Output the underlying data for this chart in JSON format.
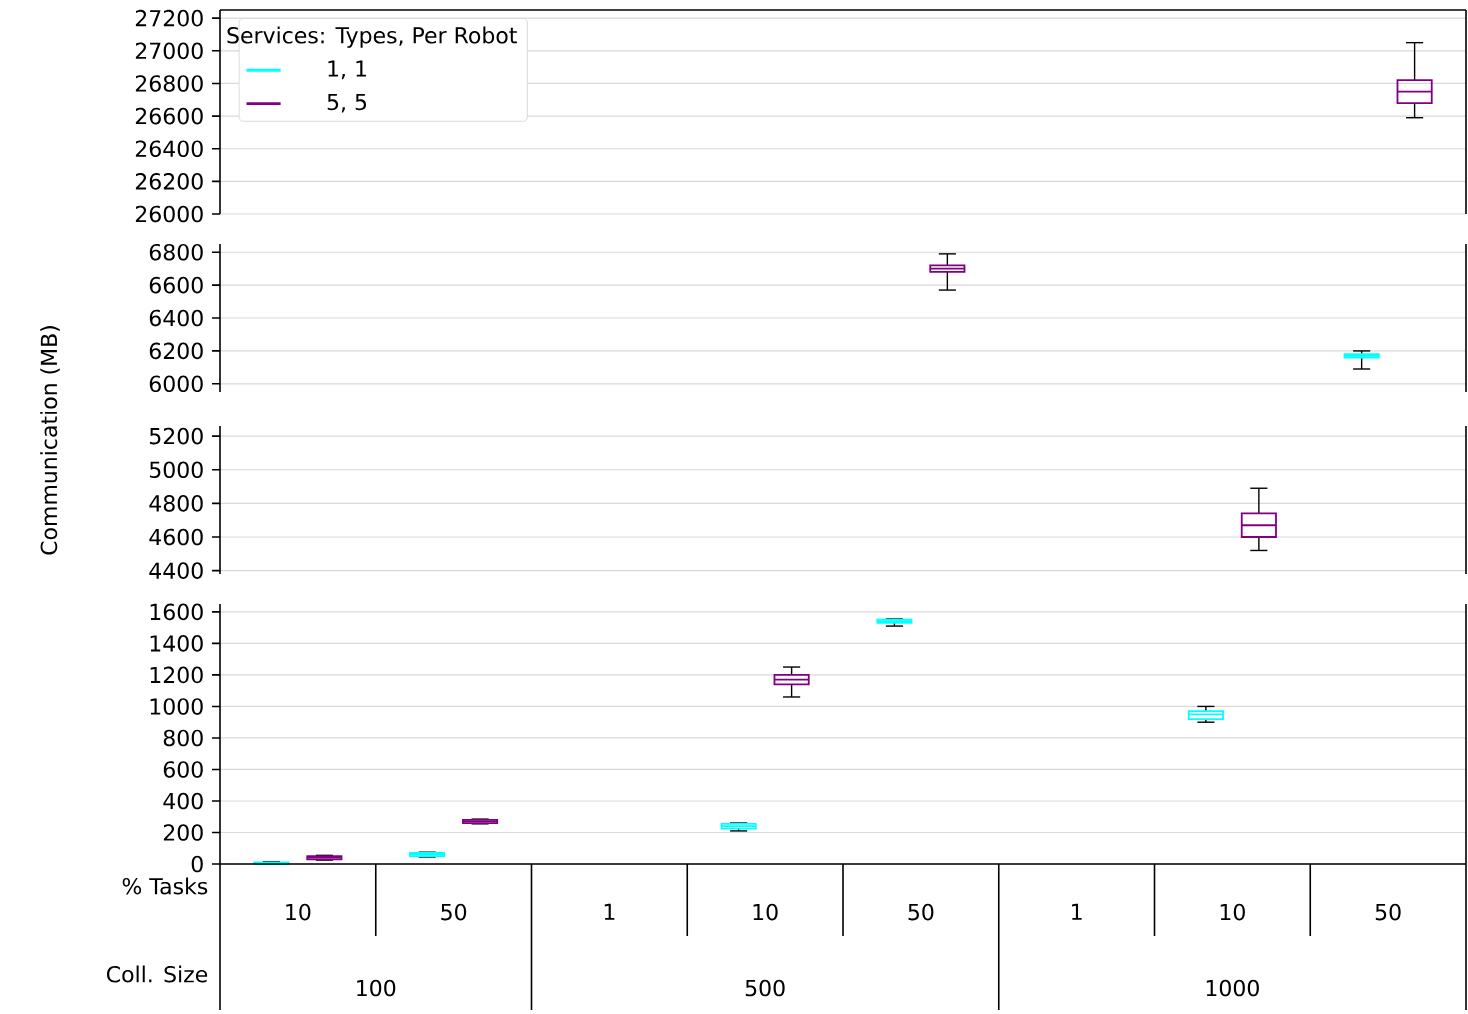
{
  "chart_data": [
    {
      "type": "box",
      "ylabel": "Communication (MB)",
      "legend_title": "Services: Types, Per Robot",
      "legend": "top left",
      "grid": "y",
      "tick_labels": "y",
      "categories": [
        "10",
        "50",
        "1",
        "10",
        "50",
        "1",
        "10",
        "50"
      ],
      "ylim": [
        26000,
        27250
      ],
      "yticks": [
        26000,
        26200,
        26400,
        26600,
        26800,
        27000,
        27200
      ],
      "series": [
        {
          "name": "1, 1",
          "color": "#00ffff",
          "boxes": [
            null,
            null,
            null,
            null,
            null,
            null,
            null,
            null
          ]
        },
        {
          "name": "5, 5",
          "color": "#800080",
          "boxes": [
            null,
            null,
            null,
            null,
            null,
            null,
            null,
            {
              "low": 26590,
              "q1": 26680,
              "median": 26750,
              "q3": 26820,
              "high": 27050
            }
          ]
        }
      ]
    },
    {
      "type": "box",
      "grid": "y",
      "tick_labels": "y",
      "categories": [
        "10",
        "50",
        "1",
        "10",
        "50",
        "1",
        "10",
        "50"
      ],
      "ylim": [
        5950,
        6850
      ],
      "yticks": [
        6000,
        6200,
        6400,
        6600,
        6800
      ],
      "series": [
        {
          "color": "#00ffff",
          "boxes": [
            null,
            null,
            null,
            null,
            null,
            null,
            null,
            {
              "low": 6090,
              "q1": 6160,
              "median": 6170,
              "q3": 6180,
              "high": 6200
            }
          ]
        },
        {
          "color": "#800080",
          "boxes": [
            null,
            null,
            null,
            null,
            {
              "low": 6570,
              "q1": 6680,
              "median": 6700,
              "q3": 6720,
              "high": 6790
            },
            null,
            null,
            null
          ]
        }
      ]
    },
    {
      "type": "box",
      "grid": "y",
      "tick_labels": "y",
      "categories": [
        "10",
        "50",
        "1",
        "10",
        "50",
        "1",
        "10",
        "50"
      ],
      "ylim": [
        4380,
        5260
      ],
      "yticks": [
        4400,
        4600,
        4800,
        5000,
        5200
      ],
      "series": [
        {
          "color": "#00ffff",
          "boxes": [
            null,
            null,
            null,
            null,
            null,
            null,
            null,
            null
          ]
        },
        {
          "color": "#800080",
          "boxes": [
            null,
            null,
            null,
            null,
            null,
            null,
            {
              "low": 4520,
              "q1": 4600,
              "median": 4670,
              "q3": 4740,
              "high": 4890
            },
            null
          ]
        }
      ]
    },
    {
      "type": "box",
      "grid": "y",
      "categories": [
        "10",
        "50",
        "1",
        "10",
        "50",
        "1",
        "10",
        "50"
      ],
      "annotations": [
        "% Tasks",
        "Coll. Size",
        "100",
        "500",
        "1000"
      ],
      "ylim": [
        0,
        1650
      ],
      "yticks": [
        0,
        200,
        400,
        600,
        800,
        1000,
        1200,
        1400,
        1600
      ],
      "series": [
        {
          "color": "#00ffff",
          "boxes": [
            {
              "low": 0,
              "q1": 0,
              "median": 5,
              "q3": 10,
              "high": 15
            },
            {
              "low": 45,
              "q1": 50,
              "median": 60,
              "q3": 70,
              "high": 75
            },
            null,
            {
              "low": 210,
              "q1": 225,
              "median": 240,
              "q3": 255,
              "high": 260
            },
            {
              "low": 1510,
              "q1": 1530,
              "median": 1540,
              "q3": 1550,
              "high": 1555
            },
            null,
            {
              "low": 900,
              "q1": 920,
              "median": 950,
              "q3": 970,
              "high": 1000
            },
            null
          ]
        },
        {
          "color": "#800080",
          "boxes": [
            {
              "low": 25,
              "q1": 30,
              "median": 40,
              "q3": 50,
              "high": 55
            },
            {
              "low": 255,
              "q1": 260,
              "median": 270,
              "q3": 280,
              "high": 285
            },
            null,
            {
              "low": 1060,
              "q1": 1140,
              "median": 1170,
              "q3": 1200,
              "high": 1250
            },
            null,
            null,
            null,
            null
          ]
        }
      ]
    }
  ]
}
